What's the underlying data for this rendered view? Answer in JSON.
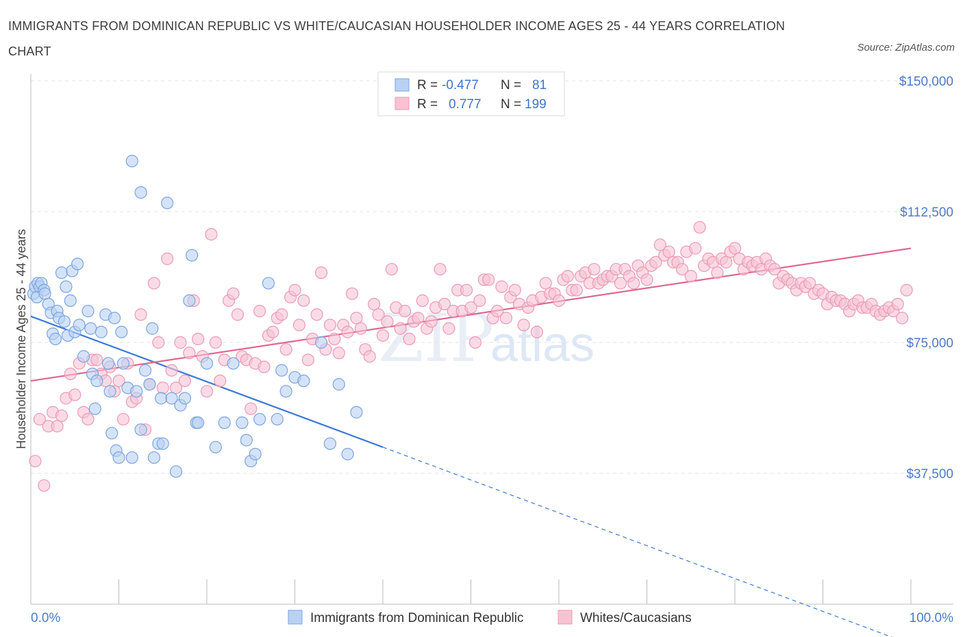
{
  "title": "IMMIGRANTS FROM DOMINICAN REPUBLIC VS WHITE/CAUCASIAN HOUSEHOLDER INCOME AGES 25 - 44 YEARS CORRELATION CHART",
  "source": "Source: ZipAtlas.com",
  "watermark": {
    "zip": "ZIP",
    "atlas": "atlas"
  },
  "legend": {
    "rows": [
      {
        "r_label": "R =",
        "r_value": "-0.477",
        "n_label": "N =",
        "n_value": "81"
      },
      {
        "r_label": "R =",
        "r_value": "0.777",
        "n_label": "N =",
        "n_value": "199"
      }
    ]
  },
  "bottom_legend": [
    "Immigrants from Dominican Republic",
    "Whites/Caucasians"
  ],
  "colors": {
    "blue_fill": "#b9d1f3",
    "blue_stroke": "#7aa5e0",
    "blue_line": "#3b78d8",
    "pink_fill": "#f7c3d3",
    "pink_stroke": "#ec9ab4",
    "pink_line": "#e06692",
    "grid": "#dfe3ea",
    "axis_text": "#4a7cc9"
  },
  "chart_data": {
    "type": "scatter",
    "title": "IMMIGRANTS FROM DOMINICAN REPUBLIC VS WHITE/CAUCASIAN HOUSEHOLDER INCOME AGES 25 - 44 YEARS CORRELATION CHART",
    "xlabel": "",
    "ylabel": "Householder Income Ages 25 - 44 years",
    "xlim": [
      0,
      100
    ],
    "ylim": [
      0,
      150000
    ],
    "x_tick_labels": [
      "0.0%",
      "100.0%"
    ],
    "y_ticks": [
      37500,
      75000,
      112500,
      150000
    ],
    "y_tick_labels": [
      "$37,500",
      "$75,000",
      "$112,500",
      "$150,000"
    ],
    "grid": true,
    "legend_position": "top-center",
    "series": [
      {
        "name": "Immigrants from Dominican Republic",
        "r": -0.477,
        "n": 81,
        "trend": {
          "x": [
            0,
            40
          ],
          "y": [
            82500,
            45000
          ],
          "dashed_to": [
            100,
            -11500
          ]
        },
        "points": [
          [
            0.3,
            89000
          ],
          [
            0.5,
            91000
          ],
          [
            0.7,
            88000
          ],
          [
            0.8,
            92000
          ],
          [
            1,
            91000
          ],
          [
            1.2,
            92000
          ],
          [
            1.5,
            90000
          ],
          [
            1.6,
            89000
          ],
          [
            2,
            86000
          ],
          [
            2.3,
            83500
          ],
          [
            2.5,
            77500
          ],
          [
            2.8,
            76000
          ],
          [
            3,
            84000
          ],
          [
            3.2,
            82000
          ],
          [
            3.5,
            95000
          ],
          [
            3.8,
            81000
          ],
          [
            4,
            91000
          ],
          [
            4.2,
            77000
          ],
          [
            4.5,
            87000
          ],
          [
            4.7,
            95500
          ],
          [
            5,
            78000
          ],
          [
            5.3,
            97500
          ],
          [
            5.5,
            80000
          ],
          [
            6,
            71000
          ],
          [
            6.5,
            84000
          ],
          [
            6.8,
            79000
          ],
          [
            7,
            66000
          ],
          [
            7.3,
            56000
          ],
          [
            7.5,
            64000
          ],
          [
            8,
            78000
          ],
          [
            8.5,
            83000
          ],
          [
            8.8,
            69000
          ],
          [
            9,
            61000
          ],
          [
            9.2,
            49000
          ],
          [
            9.5,
            82000
          ],
          [
            9.7,
            44000
          ],
          [
            10,
            42000
          ],
          [
            10.3,
            78000
          ],
          [
            10.5,
            69000
          ],
          [
            11,
            62000
          ],
          [
            11.5,
            42000
          ],
          [
            12,
            61000
          ],
          [
            12.5,
            50000
          ],
          [
            13,
            67000
          ],
          [
            13.5,
            63000
          ],
          [
            13.8,
            79000
          ],
          [
            14,
            42000
          ],
          [
            14.5,
            46000
          ],
          [
            14.8,
            59000
          ],
          [
            15,
            46000
          ],
          [
            16,
            59000
          ],
          [
            16.5,
            38000
          ],
          [
            17,
            57000
          ],
          [
            17.5,
            59000
          ],
          [
            18,
            87000
          ],
          [
            18.3,
            100000
          ],
          [
            18.8,
            52000
          ],
          [
            19,
            52000
          ],
          [
            20,
            69000
          ],
          [
            21,
            45000
          ],
          [
            22,
            52000
          ],
          [
            23,
            69000
          ],
          [
            24,
            52000
          ],
          [
            24.5,
            47000
          ],
          [
            25,
            41000
          ],
          [
            25.5,
            43000
          ],
          [
            26,
            53000
          ],
          [
            27,
            92000
          ],
          [
            28,
            53000
          ],
          [
            28.5,
            67000
          ],
          [
            29,
            61000
          ],
          [
            30,
            65000
          ],
          [
            31,
            64000
          ],
          [
            33,
            75000
          ],
          [
            34,
            46000
          ],
          [
            35,
            63000
          ],
          [
            36,
            43000
          ],
          [
            37,
            55000
          ],
          [
            11.5,
            127000
          ],
          [
            12.5,
            118000
          ],
          [
            15.5,
            115000
          ]
        ]
      },
      {
        "name": "Whites/Caucasians",
        "r": 0.777,
        "n": 199,
        "trend": {
          "x": [
            0,
            100
          ],
          "y": [
            64000,
            102000
          ]
        },
        "points": [
          [
            0.5,
            41000
          ],
          [
            1,
            53000
          ],
          [
            1.5,
            34000
          ],
          [
            2,
            51000
          ],
          [
            2.5,
            55000
          ],
          [
            3,
            51000
          ],
          [
            3.5,
            54000
          ],
          [
            4,
            59000
          ],
          [
            4.5,
            66000
          ],
          [
            5,
            60000
          ],
          [
            5.5,
            69000
          ],
          [
            6,
            55000
          ],
          [
            6.5,
            53000
          ],
          [
            7,
            70000
          ],
          [
            7.5,
            70000
          ],
          [
            8,
            66000
          ],
          [
            8.5,
            64000
          ],
          [
            9,
            68000
          ],
          [
            9.5,
            61000
          ],
          [
            10,
            64000
          ],
          [
            10.5,
            53000
          ],
          [
            11,
            69000
          ],
          [
            11.5,
            58000
          ],
          [
            12,
            59000
          ],
          [
            12.5,
            83000
          ],
          [
            13,
            50000
          ],
          [
            13.5,
            63000
          ],
          [
            14,
            92000
          ],
          [
            14.5,
            75000
          ],
          [
            15,
            62000
          ],
          [
            15.5,
            99000
          ],
          [
            16,
            67000
          ],
          [
            16.5,
            62000
          ],
          [
            17,
            75000
          ],
          [
            17.5,
            64000
          ],
          [
            18,
            72000
          ],
          [
            18.5,
            87000
          ],
          [
            19,
            76000
          ],
          [
            19.5,
            71000
          ],
          [
            20,
            61000
          ],
          [
            20.5,
            106000
          ],
          [
            21,
            75000
          ],
          [
            21.5,
            64000
          ],
          [
            22,
            70000
          ],
          [
            22.5,
            87000
          ],
          [
            23,
            89000
          ],
          [
            23.5,
            83000
          ],
          [
            24,
            71000
          ],
          [
            24.5,
            70000
          ],
          [
            25,
            56000
          ],
          [
            25.5,
            69000
          ],
          [
            26,
            84000
          ],
          [
            26.5,
            68000
          ],
          [
            27,
            77000
          ],
          [
            27.5,
            78000
          ],
          [
            28,
            82000
          ],
          [
            28.5,
            83000
          ],
          [
            29,
            73000
          ],
          [
            29.5,
            88000
          ],
          [
            30,
            90000
          ],
          [
            30.5,
            80000
          ],
          [
            31,
            87000
          ],
          [
            31.5,
            70000
          ],
          [
            32,
            76000
          ],
          [
            32.5,
            83000
          ],
          [
            33,
            95000
          ],
          [
            33.5,
            73000
          ],
          [
            34,
            80000
          ],
          [
            34.5,
            76000
          ],
          [
            35,
            72000
          ],
          [
            35.5,
            80000
          ],
          [
            36,
            78000
          ],
          [
            36.5,
            89000
          ],
          [
            37,
            82000
          ],
          [
            37.5,
            79000
          ],
          [
            38,
            73000
          ],
          [
            38.5,
            71000
          ],
          [
            39,
            86000
          ],
          [
            39.5,
            83000
          ],
          [
            40,
            77000
          ],
          [
            40.5,
            81000
          ],
          [
            41,
            96000
          ],
          [
            41.5,
            85000
          ],
          [
            42,
            79000
          ],
          [
            42.5,
            84000
          ],
          [
            43,
            76000
          ],
          [
            43.5,
            81000
          ],
          [
            44,
            82000
          ],
          [
            44.5,
            87000
          ],
          [
            45,
            79000
          ],
          [
            45.5,
            81000
          ],
          [
            46,
            85000
          ],
          [
            46.5,
            96000
          ],
          [
            47,
            86000
          ],
          [
            47.5,
            79000
          ],
          [
            48,
            84000
          ],
          [
            48.5,
            90000
          ],
          [
            49,
            84000
          ],
          [
            49.5,
            90000
          ],
          [
            50,
            85000
          ],
          [
            50.5,
            75000
          ],
          [
            51,
            87000
          ],
          [
            51.5,
            93000
          ],
          [
            52,
            93000
          ],
          [
            52.5,
            82000
          ],
          [
            53,
            84000
          ],
          [
            53.5,
            91000
          ],
          [
            54,
            82000
          ],
          [
            54.5,
            88000
          ],
          [
            55,
            90000
          ],
          [
            55.5,
            86000
          ],
          [
            56,
            80000
          ],
          [
            56.5,
            85000
          ],
          [
            57,
            87000
          ],
          [
            57.5,
            78000
          ],
          [
            58,
            88000
          ],
          [
            58.5,
            92000
          ],
          [
            59,
            89000
          ],
          [
            59.5,
            89000
          ],
          [
            60,
            87000
          ],
          [
            60.5,
            93000
          ],
          [
            61,
            94000
          ],
          [
            61.5,
            90000
          ],
          [
            62,
            90000
          ],
          [
            62.5,
            94000
          ],
          [
            63,
            95000
          ],
          [
            63.5,
            92000
          ],
          [
            64,
            96000
          ],
          [
            64.5,
            92000
          ],
          [
            65,
            93000
          ],
          [
            65.5,
            94000
          ],
          [
            66,
            94000
          ],
          [
            66.5,
            96000
          ],
          [
            67,
            92000
          ],
          [
            67.5,
            96000
          ],
          [
            68,
            94000
          ],
          [
            68.5,
            92000
          ],
          [
            69,
            97000
          ],
          [
            69.5,
            95000
          ],
          [
            70,
            93000
          ],
          [
            70.5,
            97000
          ],
          [
            71,
            98000
          ],
          [
            71.5,
            103000
          ],
          [
            72,
            100000
          ],
          [
            72.5,
            101000
          ],
          [
            73,
            98000
          ],
          [
            73.5,
            98000
          ],
          [
            74,
            96000
          ],
          [
            74.5,
            101000
          ],
          [
            75,
            94000
          ],
          [
            75.5,
            102000
          ],
          [
            76,
            108000
          ],
          [
            76.5,
            97000
          ],
          [
            77,
            99000
          ],
          [
            77.5,
            98000
          ],
          [
            78,
            95000
          ],
          [
            78.5,
            99000
          ],
          [
            79,
            98000
          ],
          [
            79.5,
            101000
          ],
          [
            80,
            102000
          ],
          [
            80.5,
            99000
          ],
          [
            81,
            96000
          ],
          [
            81.5,
            98000
          ],
          [
            82,
            97000
          ],
          [
            82.5,
            98000
          ],
          [
            83,
            96000
          ],
          [
            83.5,
            99000
          ],
          [
            84,
            97000
          ],
          [
            84.5,
            96000
          ],
          [
            85,
            92000
          ],
          [
            85.5,
            94000
          ],
          [
            86,
            93000
          ],
          [
            86.5,
            92000
          ],
          [
            87,
            90000
          ],
          [
            87.5,
            92000
          ],
          [
            88,
            91000
          ],
          [
            88.5,
            92000
          ],
          [
            89,
            89000
          ],
          [
            89.5,
            90000
          ],
          [
            90,
            89000
          ],
          [
            90.5,
            86000
          ],
          [
            91,
            88000
          ],
          [
            91.5,
            87000
          ],
          [
            92,
            87000
          ],
          [
            92.5,
            86000
          ],
          [
            93,
            84000
          ],
          [
            93.5,
            86000
          ],
          [
            94,
            87000
          ],
          [
            94.5,
            85000
          ],
          [
            95,
            85000
          ],
          [
            95.5,
            86000
          ],
          [
            96,
            84000
          ],
          [
            96.5,
            83000
          ],
          [
            97,
            84000
          ],
          [
            97.5,
            85000
          ],
          [
            98,
            84000
          ],
          [
            98.5,
            86000
          ],
          [
            99,
            82000
          ],
          [
            99.5,
            90000
          ]
        ]
      }
    ]
  }
}
